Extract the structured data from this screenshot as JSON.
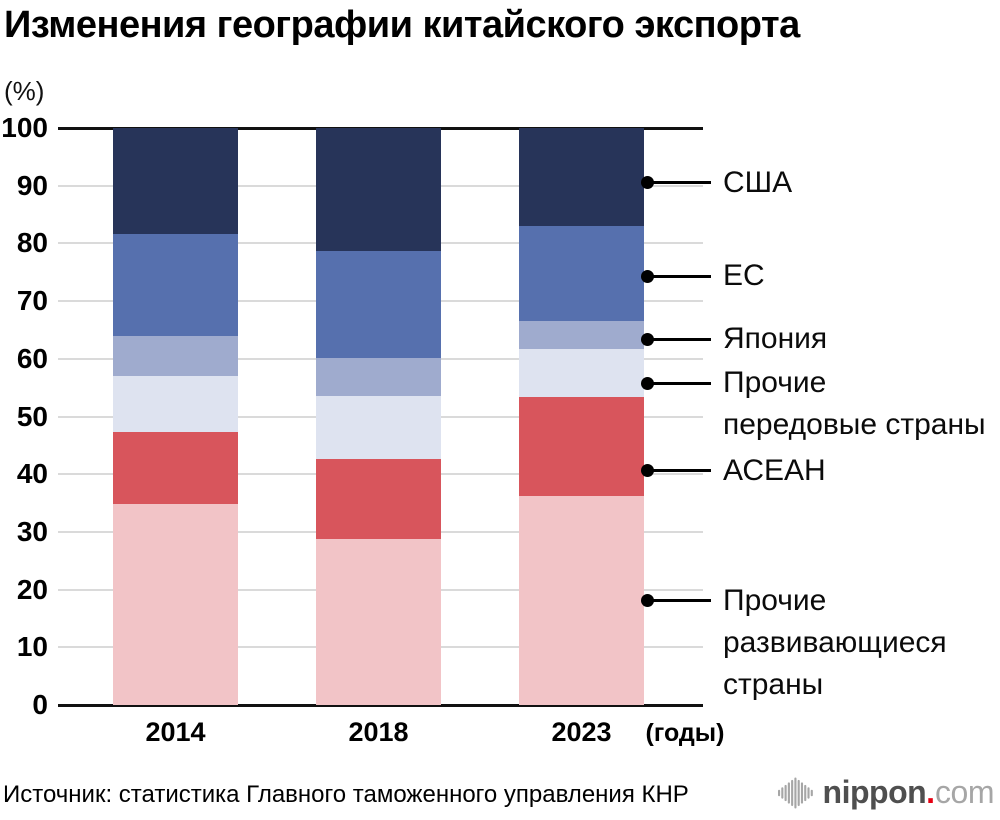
{
  "title": "Изменения географии китайского экспорта",
  "unit_label": "(%)",
  "x_axis_suffix": "(годы)",
  "source": "Источник: статистика Главного таможенного управления КНР",
  "logo": {
    "name": "nippon",
    "dot": ".",
    "tld": "com"
  },
  "chart_data": {
    "type": "bar",
    "stacked": true,
    "title": "Изменения географии китайского экспорта",
    "ylabel": "(%)",
    "ylim": [
      0,
      100
    ],
    "y_ticks": [
      0,
      10,
      20,
      30,
      40,
      50,
      60,
      70,
      80,
      90,
      100
    ],
    "grid": "horizontal",
    "categories": [
      "2014",
      "2018",
      "2023"
    ],
    "series": [
      {
        "name": "Прочие развивающиеся страны",
        "color": "#F2C4C7",
        "values": [
          34.8,
          28.7,
          36.2
        ]
      },
      {
        "name": "АСЕАН",
        "color": "#D8555C",
        "values": [
          12.5,
          14.0,
          17.2
        ]
      },
      {
        "name": "Прочие передовые страны",
        "color": "#DEE3F0",
        "values": [
          9.7,
          10.9,
          8.3
        ]
      },
      {
        "name": "Япония",
        "color": "#9FABCE",
        "values": [
          6.9,
          6.5,
          4.8
        ]
      },
      {
        "name": "ЕС",
        "color": "#5670AE",
        "values": [
          17.7,
          18.5,
          16.6
        ]
      },
      {
        "name": "США",
        "color": "#273459",
        "values": [
          18.4,
          21.4,
          16.9
        ]
      }
    ],
    "legend_position": "right-callouts",
    "legend": [
      {
        "label": "США",
        "lines": [
          "США"
        ],
        "anchor_value": 90.5
      },
      {
        "label": "ЕС",
        "lines": [
          "ЕС"
        ],
        "anchor_value": 74.3
      },
      {
        "label": "Япония",
        "lines": [
          "Япония"
        ],
        "anchor_value": 63.4
      },
      {
        "label": "Прочие передовые страны",
        "lines": [
          "Прочие",
          "передовые страны"
        ],
        "anchor_value": 55.8
      },
      {
        "label": "АСЕАН",
        "lines": [
          "АСЕАН"
        ],
        "anchor_value": 40.6
      },
      {
        "label": "Прочие развивающиеся страны",
        "lines": [
          "Прочие",
          "развивающиеся",
          "страны"
        ],
        "anchor_value": 18.1
      }
    ]
  }
}
